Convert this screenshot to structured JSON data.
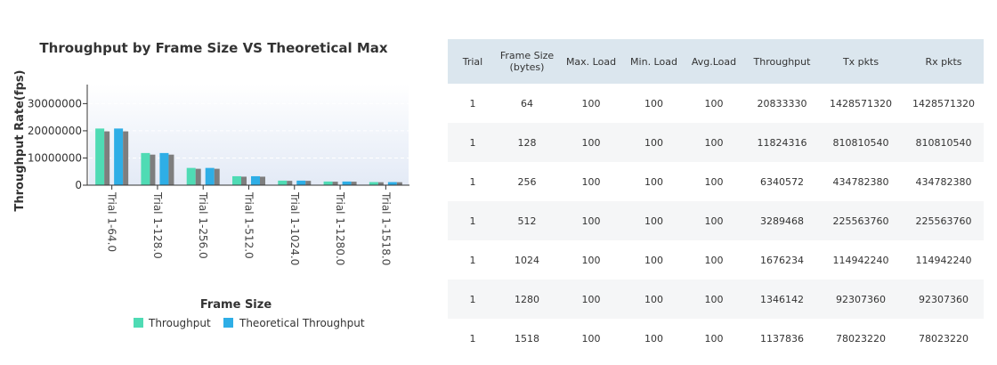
{
  "colors": {
    "throughput": "#4fdbb4",
    "theoretical": "#2eaee6",
    "gray_bar": "#7e7e7e",
    "plot_bg_top": "#ffffff",
    "plot_bg_bottom": "#e3eaf6",
    "header_bg": "#dbe6ee"
  },
  "chart_data": {
    "type": "bar",
    "title": "Throughput by Frame Size VS Theoretical Max",
    "xlabel": "Frame Size",
    "ylabel": "Throughput Rate(fps)",
    "categories": [
      "Trial 1-64.0",
      "Trial 1-128.0",
      "Trial 1-256.0",
      "Trial 1-512.0",
      "Trial 1-1024.0",
      "Trial 1-1280.0",
      "Trial 1-1518.0"
    ],
    "series": [
      {
        "name": "Throughput",
        "values": [
          20833330,
          11824316,
          6340572,
          3289468,
          1676234,
          1346142,
          1137836
        ]
      },
      {
        "name": "Theoretical Throughput",
        "values": [
          20833330,
          11824316,
          6340572,
          3289468,
          1676234,
          1346142,
          1137836
        ]
      }
    ],
    "ylim": [
      0,
      37000000
    ],
    "yticks": [
      0,
      10000000,
      20000000,
      30000000
    ],
    "ytick_labels": [
      "0",
      "10000000",
      "20000000",
      "30000000"
    ],
    "grid": true,
    "legend_position": "bottom"
  },
  "table": {
    "headers": [
      "Trial",
      "Frame Size (bytes)",
      "Max. Load",
      "Min. Load",
      "Avg.Load",
      "Throughput",
      "Tx pkts",
      "Rx pkts"
    ],
    "rows": [
      [
        "1",
        "64",
        "100",
        "100",
        "100",
        "20833330",
        "1428571320",
        "1428571320"
      ],
      [
        "1",
        "128",
        "100",
        "100",
        "100",
        "11824316",
        "810810540",
        "810810540"
      ],
      [
        "1",
        "256",
        "100",
        "100",
        "100",
        "6340572",
        "434782380",
        "434782380"
      ],
      [
        "1",
        "512",
        "100",
        "100",
        "100",
        "3289468",
        "225563760",
        "225563760"
      ],
      [
        "1",
        "1024",
        "100",
        "100",
        "100",
        "1676234",
        "114942240",
        "114942240"
      ],
      [
        "1",
        "1280",
        "100",
        "100",
        "100",
        "1346142",
        "92307360",
        "92307360"
      ],
      [
        "1",
        "1518",
        "100",
        "100",
        "100",
        "1137836",
        "78023220",
        "78023220"
      ]
    ]
  }
}
